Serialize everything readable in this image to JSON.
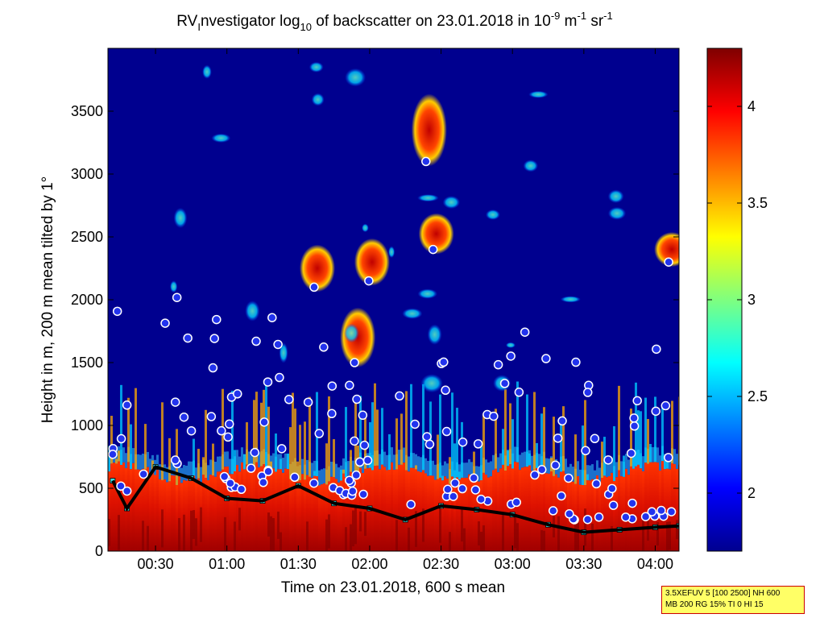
{
  "chart_data": {
    "type": "heatmap",
    "title": {
      "prefix": "RV",
      "sub1": "I",
      "mid1": "nvestigator log",
      "sub2": "10",
      "mid2": " of backscatter on 23.01.2018 in 10",
      "sup1": "-9",
      "mid3": " m",
      "sup2": "-1",
      "mid4": " sr",
      "sup3": "-1"
    },
    "xlabel": "Time on 23.01.2018, 600 s mean",
    "ylabel": "Height in m, 200 m mean tilted by 1°",
    "x_range": [
      "00:10",
      "04:10"
    ],
    "y_range": [
      0,
      4000
    ],
    "x_ticks": [
      "00:30",
      "01:00",
      "01:30",
      "02:00",
      "02:30",
      "03:00",
      "03:30",
      "04:00"
    ],
    "y_ticks": [
      0,
      500,
      1000,
      1500,
      2000,
      2500,
      3000,
      3500
    ],
    "colorbar": {
      "range": [
        1.7,
        4.3
      ],
      "ticks": [
        "2",
        "2.5",
        "3",
        "3.5",
        "4"
      ],
      "colormap": "jet"
    },
    "cloud_layers": [
      {
        "time": "01:38",
        "base_m": 2100,
        "top_m": 2400
      },
      {
        "time": "01:55",
        "base_m": 1500,
        "top_m": 1900
      },
      {
        "time": "02:01",
        "base_m": 2150,
        "top_m": 2450
      },
      {
        "time": "02:25",
        "base_m": 3100,
        "top_m": 3600
      },
      {
        "time": "02:28",
        "base_m": 2400,
        "top_m": 2650
      },
      {
        "time": "04:07",
        "base_m": 2300,
        "top_m": 2500
      }
    ],
    "boundary_layer_height_m": [
      {
        "time": "00:12",
        "value": 560
      },
      {
        "time": "00:18",
        "value": 340
      },
      {
        "time": "00:30",
        "value": 670
      },
      {
        "time": "00:45",
        "value": 580
      },
      {
        "time": "01:00",
        "value": 420
      },
      {
        "time": "01:15",
        "value": 400
      },
      {
        "time": "01:30",
        "value": 520
      },
      {
        "time": "01:45",
        "value": 380
      },
      {
        "time": "02:00",
        "value": 340
      },
      {
        "time": "02:15",
        "value": 250
      },
      {
        "time": "02:30",
        "value": 360
      },
      {
        "time": "02:45",
        "value": 330
      },
      {
        "time": "03:00",
        "value": 290
      },
      {
        "time": "03:15",
        "value": 210
      },
      {
        "time": "03:30",
        "value": 150
      },
      {
        "time": "03:45",
        "value": 170
      },
      {
        "time": "04:00",
        "value": 190
      },
      {
        "time": "04:10",
        "value": 200
      }
    ],
    "colors": {
      "background_field": "#00008f",
      "marker_fill": "#2233ee",
      "marker_edge": "#ffffff",
      "marker_dark": "#000000",
      "marker_cyan": "#33e6e6"
    }
  },
  "info_box": {
    "line1": "3.5XEFUV 5 [100 2500] NH 600",
    "line2": "MB 200 RG 15% TI 0 HI 15"
  }
}
